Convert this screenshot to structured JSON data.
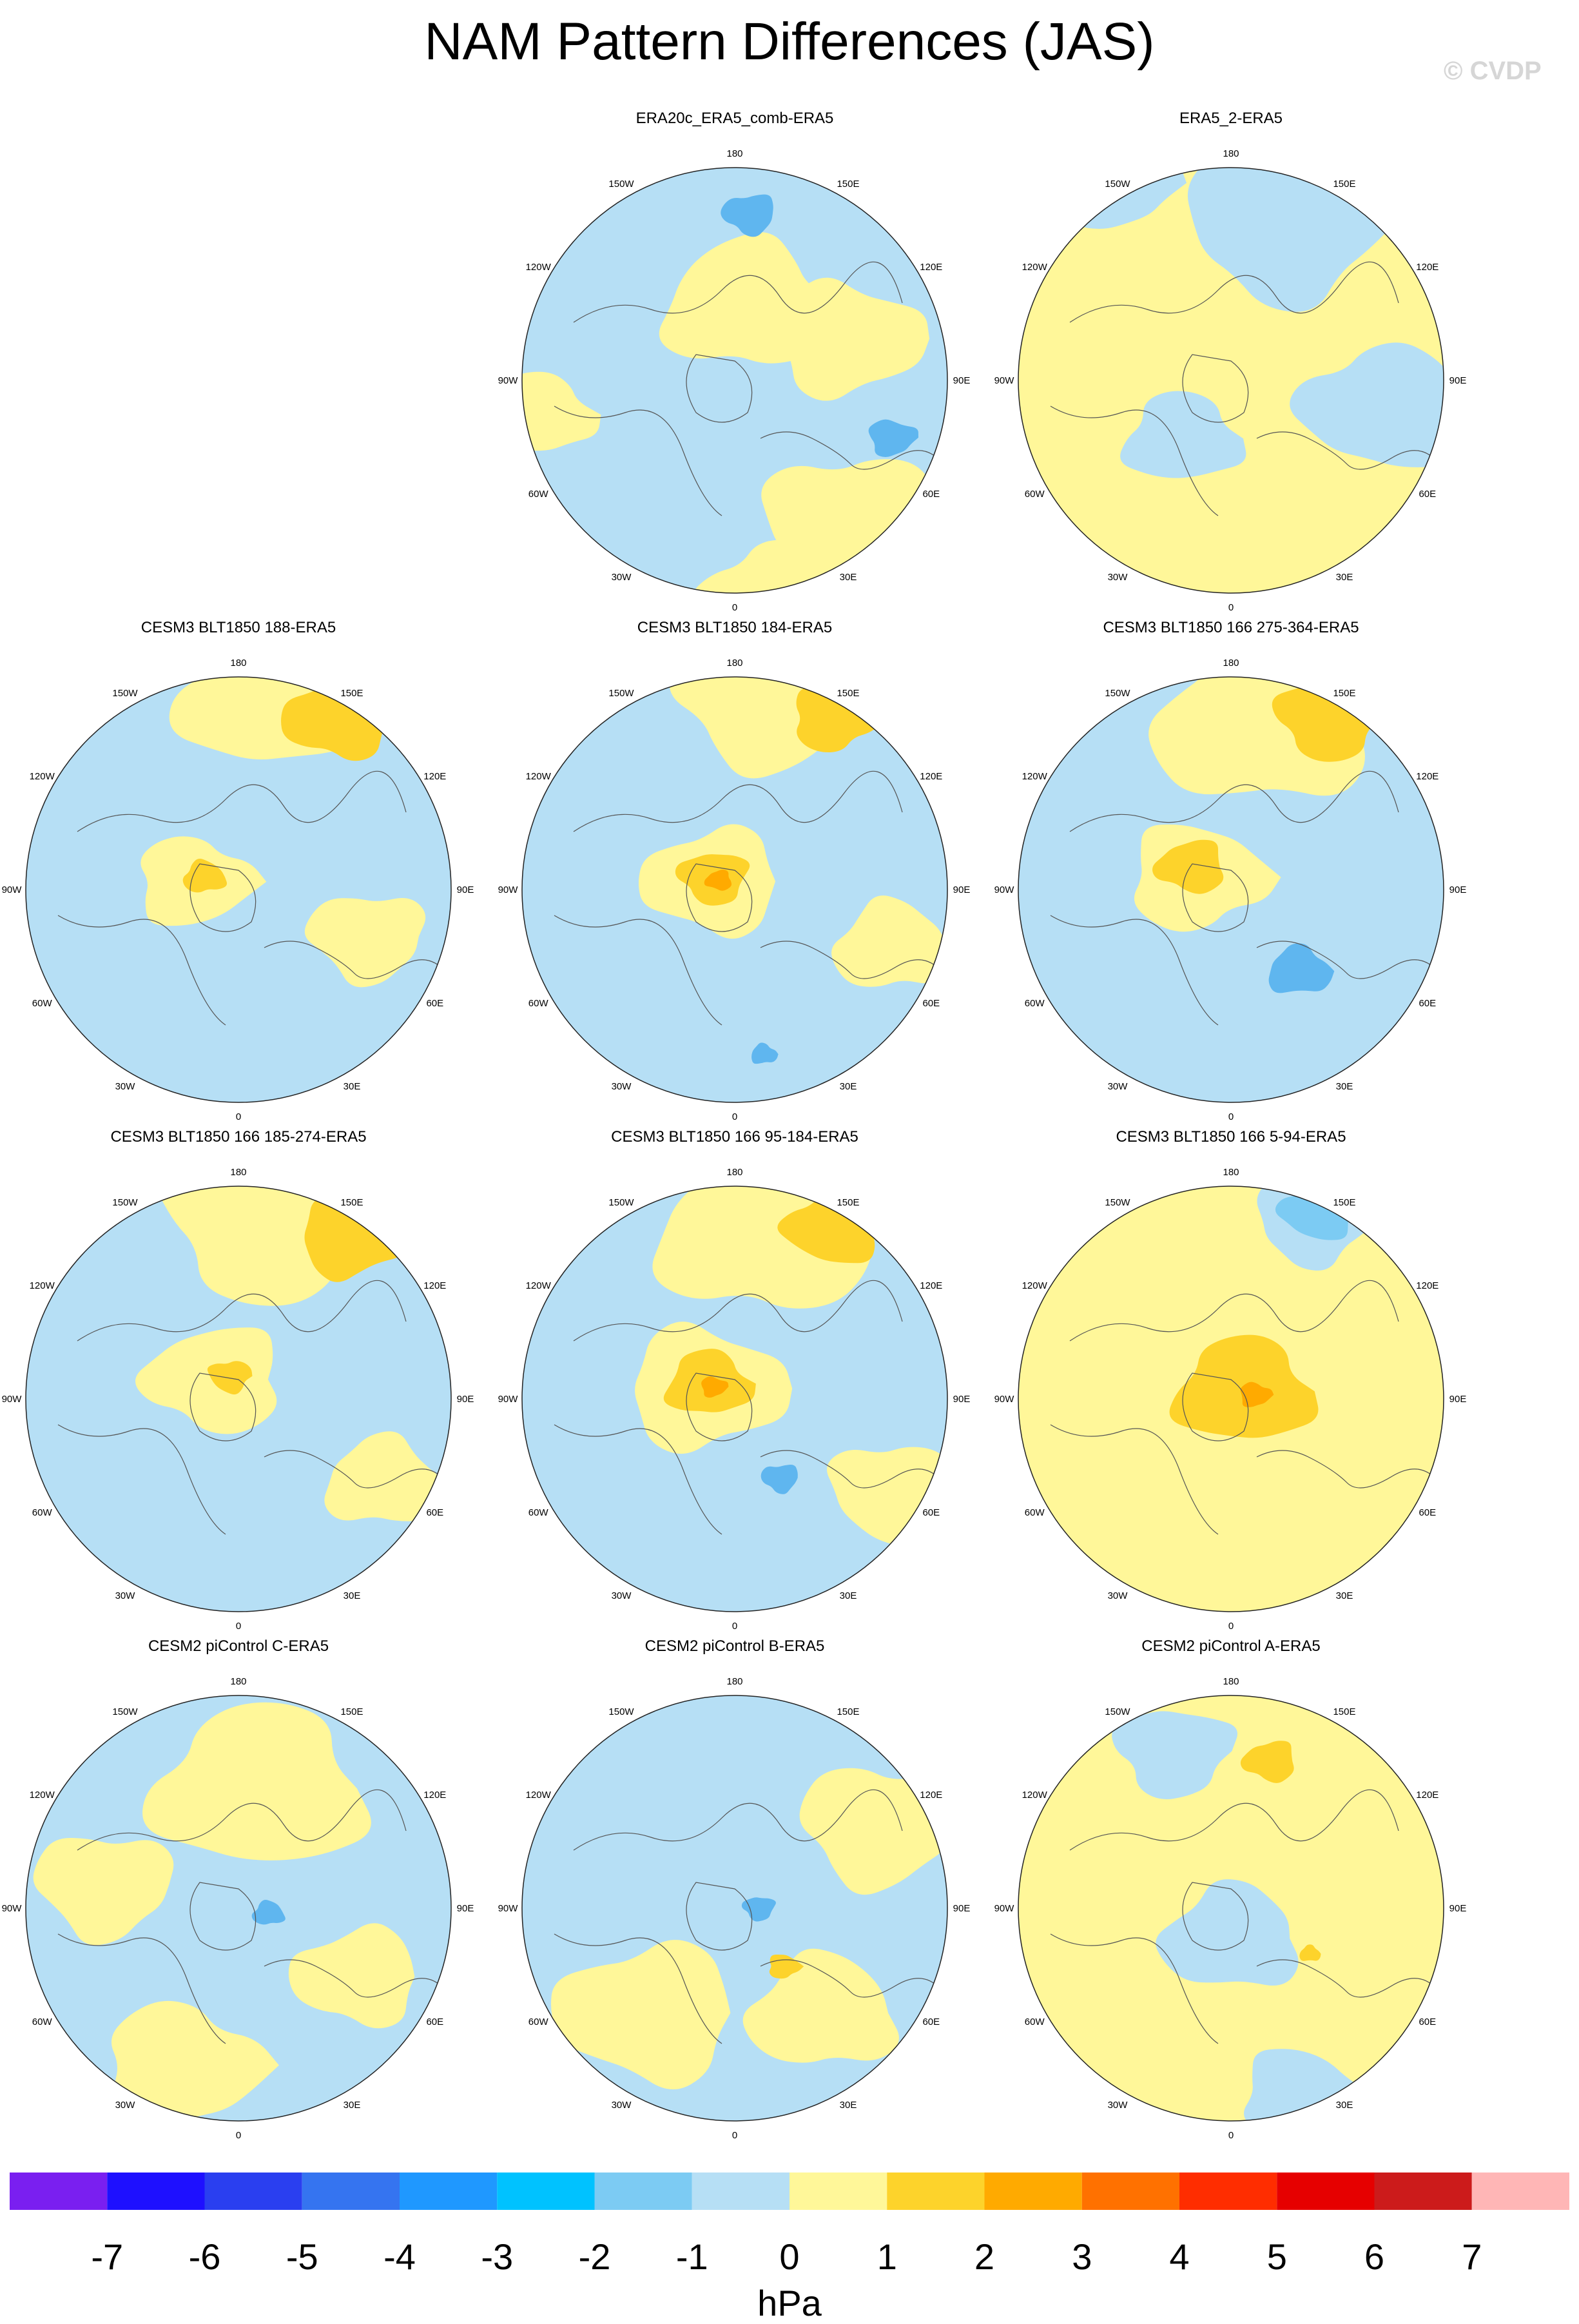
{
  "title": "NAM Pattern Differences (JAS)",
  "copyright": "© CVDP",
  "lon_labels": [
    "180",
    "150E",
    "120E",
    "90E",
    "60E",
    "30E",
    "0",
    "30W",
    "60W",
    "90W",
    "120W",
    "150W"
  ],
  "panels": [
    {
      "title": "ERA20c_ERA5_comb-ERA5",
      "base": "negative",
      "patches": [
        {
          "level": 0.5,
          "lon": 170,
          "colat": 25,
          "r": 0.32
        },
        {
          "level": 0.5,
          "lon": 110,
          "colat": 40,
          "r": 0.28
        },
        {
          "level": 0.5,
          "lon": 40,
          "colat": 60,
          "r": 0.33
        },
        {
          "level": 0.5,
          "lon": 10,
          "colat": 72,
          "r": 0.26
        },
        {
          "level": 0.5,
          "lon": -80,
          "colat": 65,
          "r": 0.2
        },
        {
          "level": -2.5,
          "lon": 70,
          "colat": 55,
          "r": 0.09
        },
        {
          "level": -2.5,
          "lon": 175,
          "colat": 55,
          "r": 0.1
        }
      ]
    },
    {
      "title": "ERA5_2-ERA5",
      "base": "positive",
      "patches": [
        {
          "level": -0.5,
          "lon": 160,
          "colat": 55,
          "r": 0.38
        },
        {
          "level": -0.5,
          "lon": 80,
          "colat": 50,
          "r": 0.3
        },
        {
          "level": -0.5,
          "lon": -40,
          "colat": 25,
          "r": 0.22
        },
        {
          "level": -0.5,
          "lon": -150,
          "colat": 75,
          "r": 0.22
        }
      ]
    },
    {
      "title": "CESM3 BLT1850 188-ERA5",
      "base": "negative",
      "patches": [
        {
          "level": 0.5,
          "lon": 170,
          "colat": 65,
          "r": 0.36
        },
        {
          "level": 0.5,
          "lon": -100,
          "colat": 15,
          "r": 0.22
        },
        {
          "level": 0.5,
          "lon": 70,
          "colat": 45,
          "r": 0.22
        },
        {
          "level": 1.5,
          "lon": 150,
          "colat": 65,
          "r": 0.2
        },
        {
          "level": 1.5,
          "lon": -110,
          "colat": 12,
          "r": 0.08
        }
      ]
    },
    {
      "title": "CESM3 BLT1850 184-ERA5",
      "base": "negative",
      "patches": [
        {
          "level": 0.5,
          "lon": 170,
          "colat": 65,
          "r": 0.36
        },
        {
          "level": 0.5,
          "lon": -110,
          "colat": 8,
          "r": 0.26
        },
        {
          "level": 0.5,
          "lon": 70,
          "colat": 55,
          "r": 0.22
        },
        {
          "level": 1.5,
          "lon": 150,
          "colat": 65,
          "r": 0.16
        },
        {
          "level": 1.5,
          "lon": -120,
          "colat": 8,
          "r": 0.13
        },
        {
          "level": 2.5,
          "lon": -120,
          "colat": 6,
          "r": 0.05
        },
        {
          "level": -2.5,
          "lon": 10,
          "colat": 55,
          "r": 0.05
        }
      ]
    },
    {
      "title": "CESM3 BLT1850 166 275-364-ERA5",
      "base": "negative",
      "patches": [
        {
          "level": 0.5,
          "lon": 170,
          "colat": 55,
          "r": 0.4
        },
        {
          "level": 0.5,
          "lon": -110,
          "colat": 12,
          "r": 0.26
        },
        {
          "level": 1.5,
          "lon": 150,
          "colat": 65,
          "r": 0.2
        },
        {
          "level": 1.5,
          "lon": -120,
          "colat": 15,
          "r": 0.13
        },
        {
          "level": -2.5,
          "lon": 40,
          "colat": 35,
          "r": 0.12
        }
      ]
    },
    {
      "title": "CESM3 BLT1850 166 185-274-ERA5",
      "base": "negative",
      "patches": [
        {
          "level": 0.5,
          "lon": 170,
          "colat": 60,
          "r": 0.4
        },
        {
          "level": 0.5,
          "lon": -130,
          "colat": 10,
          "r": 0.26
        },
        {
          "level": 0.5,
          "lon": 60,
          "colat": 55,
          "r": 0.22
        },
        {
          "level": 1.5,
          "lon": 145,
          "colat": 65,
          "r": 0.2
        },
        {
          "level": 1.5,
          "lon": -160,
          "colat": 8,
          "r": 0.08
        }
      ]
    },
    {
      "title": "CESM3 BLT1850 166 95-184-ERA5",
      "base": "negative",
      "patches": [
        {
          "level": 0.5,
          "lon": 170,
          "colat": 55,
          "r": 0.4
        },
        {
          "level": 0.5,
          "lon": -110,
          "colat": 10,
          "r": 0.3
        },
        {
          "level": 0.5,
          "lon": 60,
          "colat": 60,
          "r": 0.24
        },
        {
          "level": 1.5,
          "lon": 150,
          "colat": 65,
          "r": 0.18
        },
        {
          "level": 1.5,
          "lon": -120,
          "colat": 10,
          "r": 0.16
        },
        {
          "level": 2.5,
          "lon": -120,
          "colat": 8,
          "r": 0.05
        },
        {
          "level": -2.5,
          "lon": 30,
          "colat": 30,
          "r": 0.07
        }
      ]
    },
    {
      "title": "CESM3 BLT1850 166 5-94-ERA5",
      "base": "positive",
      "patches": [
        {
          "level": -0.5,
          "lon": 155,
          "colat": 65,
          "r": 0.22
        },
        {
          "level": -1.5,
          "lon": 155,
          "colat": 68,
          "r": 0.14
        },
        {
          "level": 1.5,
          "lon": 120,
          "colat": 5,
          "r": 0.26
        },
        {
          "level": 2.5,
          "lon": 100,
          "colat": 8,
          "r": 0.06
        }
      ]
    },
    {
      "title": "CESM2 piControl C-ERA5",
      "base": "negative",
      "patches": [
        {
          "level": 0.5,
          "lon": 170,
          "colat": 40,
          "r": 0.4
        },
        {
          "level": 0.5,
          "lon": -20,
          "colat": 55,
          "r": 0.3
        },
        {
          "level": 0.5,
          "lon": -100,
          "colat": 45,
          "r": 0.26
        },
        {
          "level": 0.5,
          "lon": 60,
          "colat": 45,
          "r": 0.24
        },
        {
          "level": -2.5,
          "lon": 80,
          "colat": 10,
          "r": 0.06
        }
      ]
    },
    {
      "title": "CESM2 piControl B-ERA5",
      "base": "negative",
      "patches": [
        {
          "level": 0.5,
          "lon": 120,
          "colat": 55,
          "r": 0.3
        },
        {
          "level": 0.5,
          "lon": -40,
          "colat": 45,
          "r": 0.34
        },
        {
          "level": 0.5,
          "lon": 40,
          "colat": 45,
          "r": 0.28
        },
        {
          "level": 1.5,
          "lon": 40,
          "colat": 25,
          "r": 0.06
        },
        {
          "level": -2.5,
          "lon": 90,
          "colat": 8,
          "r": 0.06
        }
      ]
    },
    {
      "title": "CESM2 piControl A-ERA5",
      "base": "positive",
      "patches": [
        {
          "level": -0.5,
          "lon": 0,
          "colat": 10,
          "r": 0.26
        },
        {
          "level": -0.5,
          "lon": 20,
          "colat": 65,
          "r": 0.22
        },
        {
          "level": -0.5,
          "lon": -160,
          "colat": 55,
          "r": 0.22
        },
        {
          "level": 1.5,
          "lon": 165,
          "colat": 50,
          "r": 0.1
        },
        {
          "level": 1.5,
          "lon": 60,
          "colat": 30,
          "r": 0.04
        }
      ]
    }
  ],
  "colorbar": {
    "colors": [
      "#7a1ff0",
      "#1e10ff",
      "#2a3ff0",
      "#3574f0",
      "#1f98ff",
      "#00c2ff",
      "#7ccbf3",
      "#b6dff5",
      "#fff799",
      "#fdd32b",
      "#ffaa00",
      "#ff7100",
      "#ff2d00",
      "#e60000",
      "#cc1b1b",
      "#ffb6b6"
    ],
    "ticks": [
      "-7",
      "-6",
      "-5",
      "-4",
      "-3",
      "-2",
      "-1",
      "0",
      "1",
      "2",
      "3",
      "4",
      "5",
      "6",
      "7"
    ],
    "units": "hPa"
  }
}
